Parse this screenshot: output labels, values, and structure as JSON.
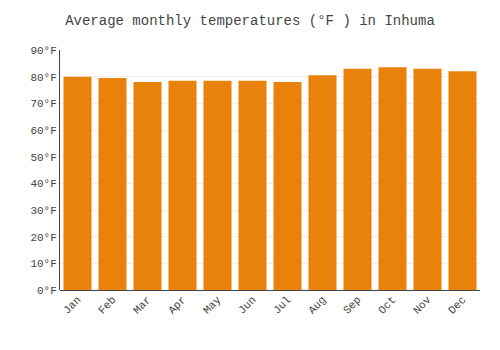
{
  "chart_data": {
    "type": "bar",
    "title": "Average monthly temperatures (°F ) in Inhuma",
    "categories": [
      "Jan",
      "Feb",
      "Mar",
      "Apr",
      "May",
      "Jun",
      "Jul",
      "Aug",
      "Sep",
      "Oct",
      "Nov",
      "Dec"
    ],
    "values": [
      80,
      79.5,
      78,
      78.5,
      78.5,
      78.5,
      78,
      80.5,
      83,
      83.5,
      83,
      82
    ],
    "color": "#E8820A",
    "ylim": [
      0,
      90
    ],
    "yticks": [
      {
        "value": 0,
        "label": "0°F"
      },
      {
        "value": 10,
        "label": "10°F"
      },
      {
        "value": 20,
        "label": "20°F"
      },
      {
        "value": 30,
        "label": "30°F"
      },
      {
        "value": 40,
        "label": "40°F"
      },
      {
        "value": 50,
        "label": "50°F"
      },
      {
        "value": 60,
        "label": "60°F"
      },
      {
        "value": 70,
        "label": "70°F"
      },
      {
        "value": 80,
        "label": "80°F"
      },
      {
        "value": 90,
        "label": "90°F"
      }
    ],
    "grid": true
  }
}
